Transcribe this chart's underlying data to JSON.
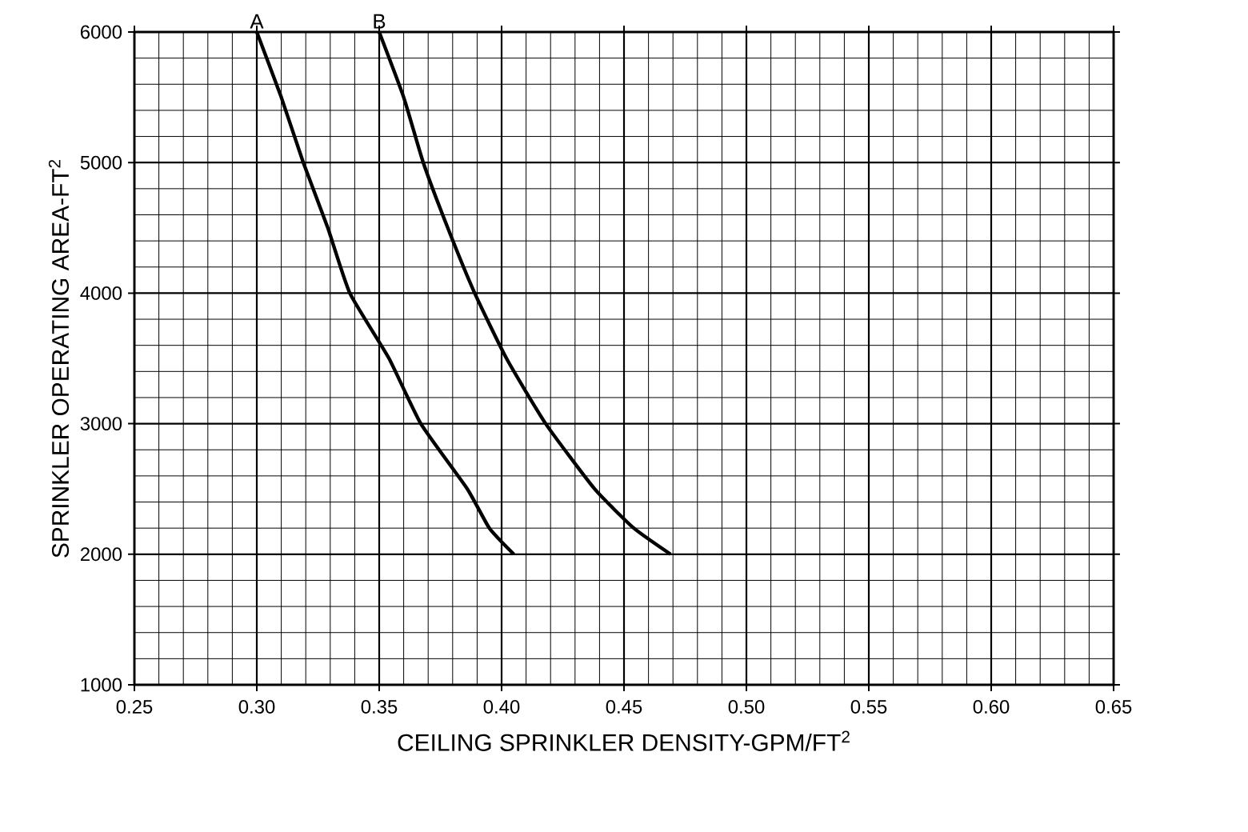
{
  "chart_data": {
    "type": "line",
    "xlabel": "CEILING SPRINKLER DENSITY-GPM/FT$^{2}$",
    "ylabel": "SPRINKLER OPERATING AREA-FT$^{2}$",
    "xlim": [
      0.25,
      0.65
    ],
    "ylim": [
      1000,
      6000
    ],
    "xticks": [
      0.25,
      {
        "value": 0.3,
        "label": "0.30"
      },
      0.35,
      {
        "value": 0.4,
        "label": "0.40"
      },
      0.45,
      {
        "value": 0.5,
        "label": "0.50"
      },
      0.55,
      {
        "value": 0.6,
        "label": "0.60"
      },
      0.65
    ],
    "yticks": [
      1000,
      2000,
      3000,
      4000,
      5000,
      6000
    ],
    "grid": true,
    "line_style": "solid",
    "series": [
      {
        "color": "#000000",
        "x": [
          0.3,
          0.31,
          0.319,
          0.329,
          0.338,
          0.354,
          0.367,
          0.386,
          0.395,
          0.405
        ],
        "values": [
          6000,
          5500,
          5000,
          4500,
          4000,
          3500,
          3000,
          2500,
          2200,
          2000
        ]
      },
      {
        "color": "#000000",
        "x": [
          0.35,
          0.36,
          0.368,
          0.378,
          0.389,
          0.402,
          0.418,
          0.438,
          0.454,
          0.469
        ],
        "values": [
          6000,
          5500,
          5000,
          4500,
          4000,
          3500,
          3000,
          2500,
          2200,
          2000
        ]
      }
    ],
    "annotations": [
      {
        "text": "A",
        "x": 0.3,
        "y": 6000
      },
      {
        "text": "B",
        "x": 0.35,
        "y": 6000
      }
    ]
  }
}
